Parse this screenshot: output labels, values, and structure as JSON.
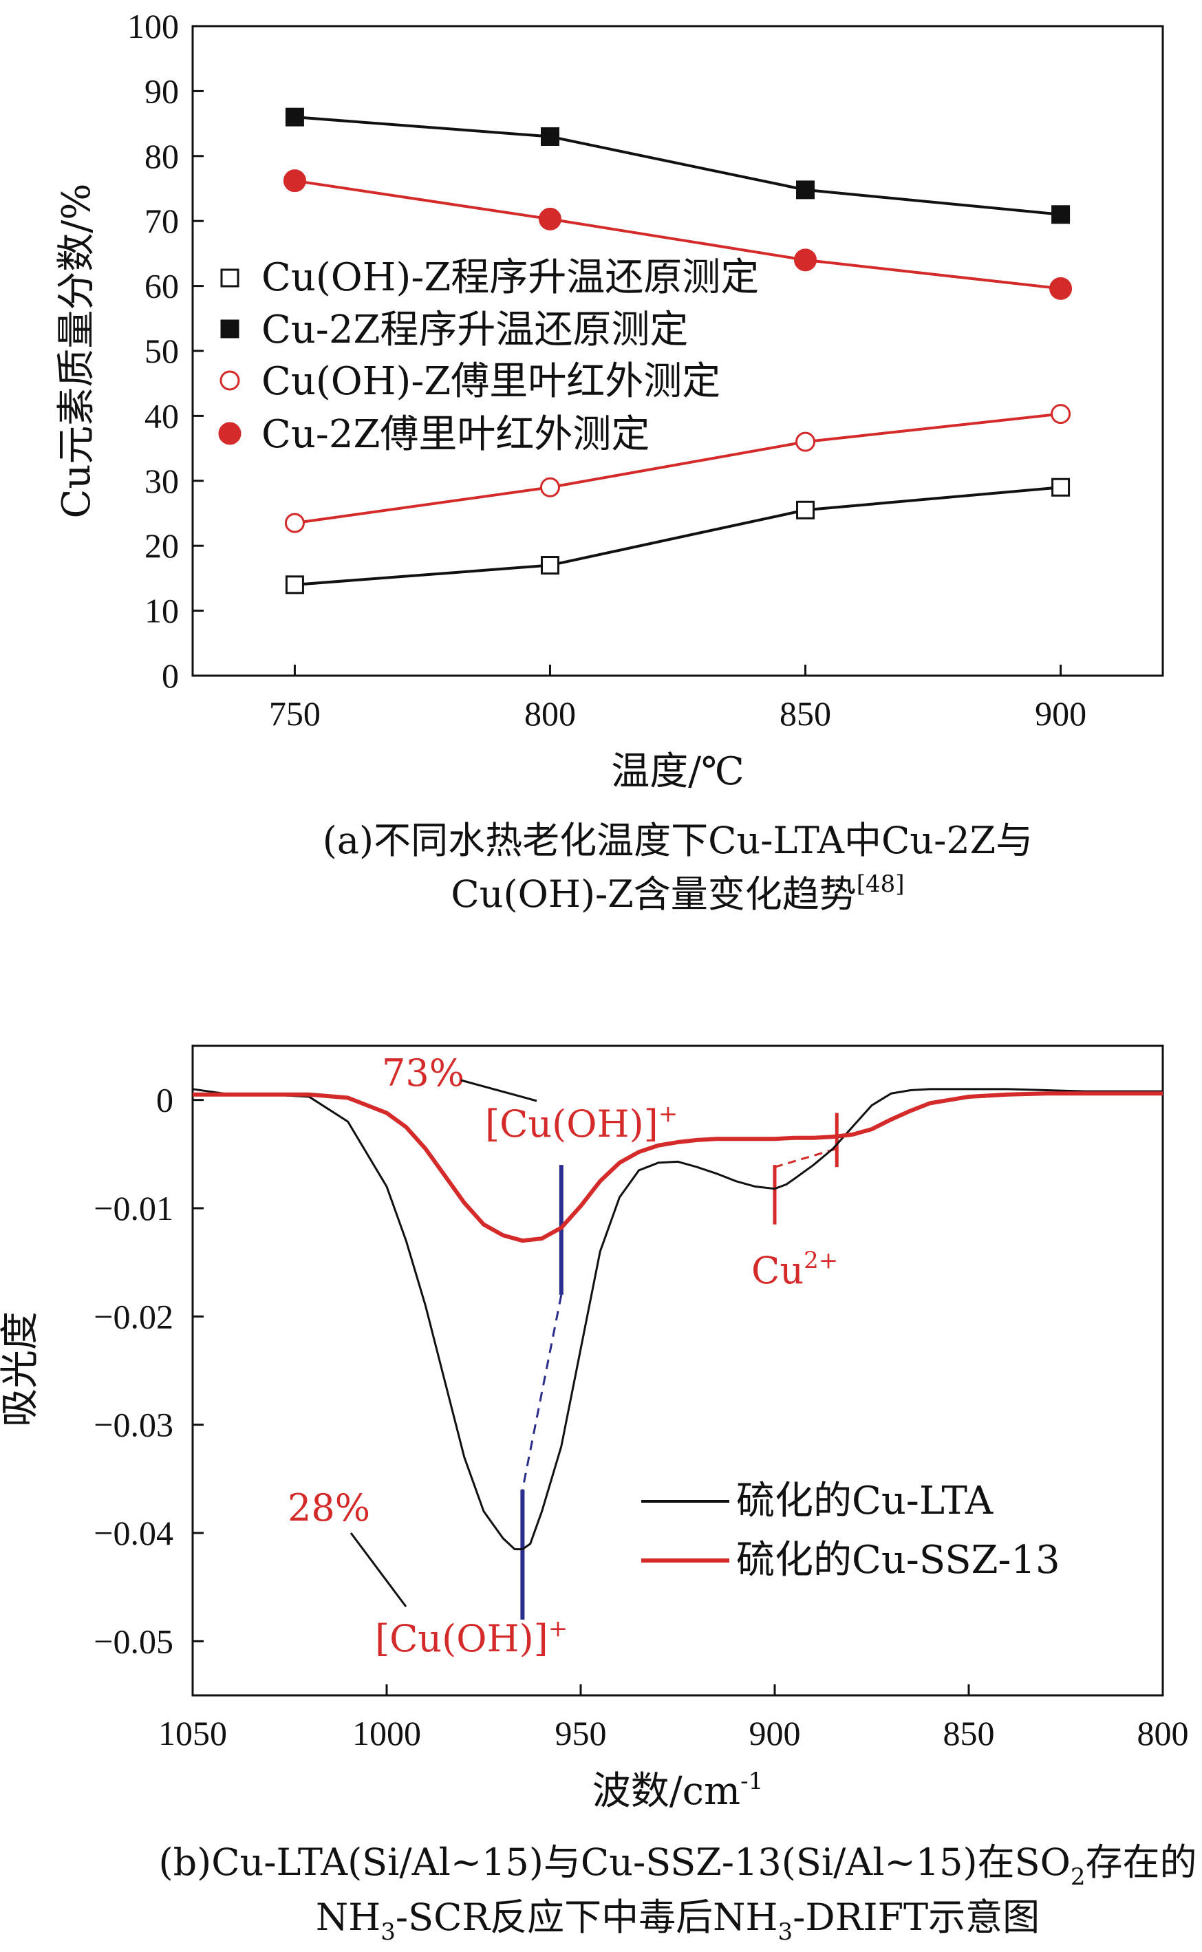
{
  "colors": {
    "black": "#111111",
    "red": "#d42a2a",
    "blue": "#2b2d8c"
  },
  "chart_data": [
    {
      "type": "line",
      "ylabel": "Cu元素质量分数/%",
      "xlabel": "温度/℃",
      "caption_line1": "(a)不同水热老化温度下Cu-LTA中Cu-2Z与",
      "caption_line2": "Cu(OH)-Z含量变化趋势",
      "caption_ref": "[48]",
      "x": [
        750,
        800,
        850,
        900
      ],
      "xlim": [
        730,
        920
      ],
      "ylim": [
        0,
        100
      ],
      "xticks": [
        "750",
        "800",
        "850",
        "900"
      ],
      "yticks": [
        "0",
        "10",
        "20",
        "30",
        "40",
        "50",
        "60",
        "70",
        "80",
        "90",
        "100"
      ],
      "legend_position": "center-left",
      "series": [
        {
          "name": "Cu(OH)-Z程序升温还原测定",
          "marker": "open-square",
          "color": "#111111",
          "values": [
            14,
            17,
            25.5,
            29
          ]
        },
        {
          "name": "Cu-2Z程序升温还原测定",
          "marker": "filled-square",
          "color": "#111111",
          "values": [
            86,
            83,
            74.8,
            71
          ]
        },
        {
          "name": "Cu(OH)-Z傅里叶红外测定",
          "marker": "open-circle",
          "color": "#d42a2a",
          "values": [
            23.5,
            29,
            36,
            40.3
          ]
        },
        {
          "name": "Cu-2Z傅里叶红外测定",
          "marker": "filled-circle",
          "color": "#d42a2a",
          "values": [
            76.2,
            70.3,
            64,
            59.6
          ]
        }
      ]
    },
    {
      "type": "line",
      "ylabel": "吸光度",
      "xlabel_main": "波数/cm",
      "xlabel_sup": "-1",
      "caption_line1": "(b)Cu-LTA(Si/Al~15)与Cu-SSZ-13(Si/Al~15)在SO",
      "caption_line1_sub": "2",
      "caption_line1_end": "存在的",
      "caption_line2_a": "NH",
      "caption_line2_sub1": "3",
      "caption_line2_b": "-SCR反应下中毒后NH",
      "caption_line2_sub2": "3",
      "caption_line2_c": "-DRIFT示意图",
      "xlim": [
        1050,
        800
      ],
      "ylim": [
        -0.055,
        0.005
      ],
      "xticks": [
        "1050",
        "1000",
        "950",
        "900",
        "850",
        "800"
      ],
      "yticks": [
        "0",
        "−0.01",
        "−0.02",
        "−0.03",
        "−0.04",
        "−0.05"
      ],
      "legend_position": "lower-right",
      "series": [
        {
          "name": "硫化的Cu-LTA",
          "color": "#111111",
          "x": [
            1050,
            1040,
            1030,
            1020,
            1010,
            1000,
            995,
            990,
            985,
            980,
            975,
            970,
            967,
            965,
            963,
            960,
            955,
            950,
            945,
            940,
            935,
            930,
            925,
            920,
            915,
            910,
            905,
            900,
            897,
            895,
            890,
            885,
            880,
            875,
            870,
            865,
            860,
            850,
            840,
            830,
            820,
            810,
            800
          ],
          "values": [
            0.001,
            0.0005,
            0.0005,
            0.0003,
            -0.002,
            -0.008,
            -0.013,
            -0.019,
            -0.026,
            -0.033,
            -0.038,
            -0.0405,
            -0.0415,
            -0.0415,
            -0.041,
            -0.038,
            -0.032,
            -0.023,
            -0.014,
            -0.009,
            -0.0065,
            -0.0058,
            -0.0057,
            -0.0062,
            -0.0068,
            -0.0075,
            -0.008,
            -0.0082,
            -0.0078,
            -0.0073,
            -0.006,
            -0.0045,
            -0.0025,
            -0.0005,
            0.0006,
            0.0009,
            0.001,
            0.001,
            0.001,
            0.0009,
            0.0008,
            0.0008,
            0.0008
          ]
        },
        {
          "name": "硫化的Cu-SSZ-13",
          "color": "#d42a2a",
          "x": [
            1050,
            1040,
            1030,
            1020,
            1010,
            1000,
            995,
            990,
            985,
            980,
            975,
            970,
            965,
            960,
            955,
            950,
            945,
            940,
            935,
            930,
            925,
            920,
            915,
            910,
            905,
            900,
            895,
            890,
            885,
            880,
            875,
            870,
            865,
            860,
            850,
            840,
            830,
            820,
            810,
            800
          ],
          "values": [
            0.0005,
            0.0005,
            0.0005,
            0.0005,
            0.0002,
            -0.0012,
            -0.0025,
            -0.0045,
            -0.007,
            -0.0095,
            -0.0115,
            -0.0125,
            -0.013,
            -0.0128,
            -0.0118,
            -0.0098,
            -0.0075,
            -0.0058,
            -0.0048,
            -0.0042,
            -0.0039,
            -0.0037,
            -0.0036,
            -0.0036,
            -0.0036,
            -0.0036,
            -0.0035,
            -0.0035,
            -0.0034,
            -0.0032,
            -0.0027,
            -0.0018,
            -0.001,
            -0.0003,
            0.0003,
            0.0005,
            0.0006,
            0.0006,
            0.0006,
            0.0006
          ]
        }
      ],
      "annotations": {
        "pct_73": "73%",
        "pct_28": "28%",
        "cuoh_main": "[Cu(OH)]",
        "cuoh_sup": "+",
        "cu2_main": "Cu",
        "cu2_sup": "2+"
      }
    }
  ]
}
